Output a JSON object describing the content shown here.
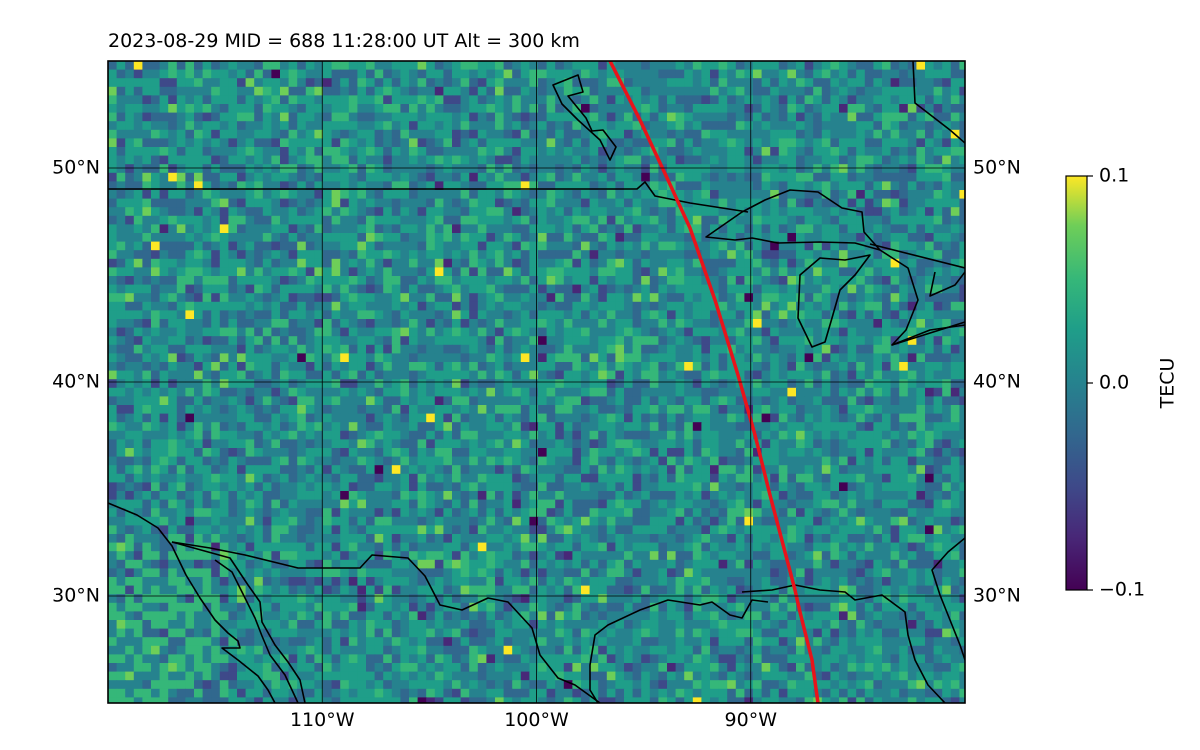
{
  "title": "2023-08-29  MID = 688    11:28:00  UT  Alt = 300 km",
  "map": {
    "lon_range": [
      -120,
      -80
    ],
    "lat_range": [
      25,
      55
    ],
    "lat_ticks": [
      {
        "value": 30,
        "label": "30°N"
      },
      {
        "value": 40,
        "label": "40°N"
      },
      {
        "value": 50,
        "label": "50°N"
      }
    ],
    "lon_ticks": [
      {
        "value": -110,
        "label": "110°W"
      },
      {
        "value": -100,
        "label": "100°W"
      },
      {
        "value": -90,
        "label": "90°W"
      }
    ],
    "track_color": "#e8141b",
    "coastline_color": "#000000",
    "grid": true
  },
  "colorbar": {
    "label": "TECU",
    "min": -0.1,
    "max": 0.1,
    "ticks": [
      {
        "value": 0.1,
        "label": "0.1"
      },
      {
        "value": 0.0,
        "label": "0.0"
      },
      {
        "value": -0.1,
        "label": "−0.1"
      }
    ],
    "colormap": "viridis"
  }
}
